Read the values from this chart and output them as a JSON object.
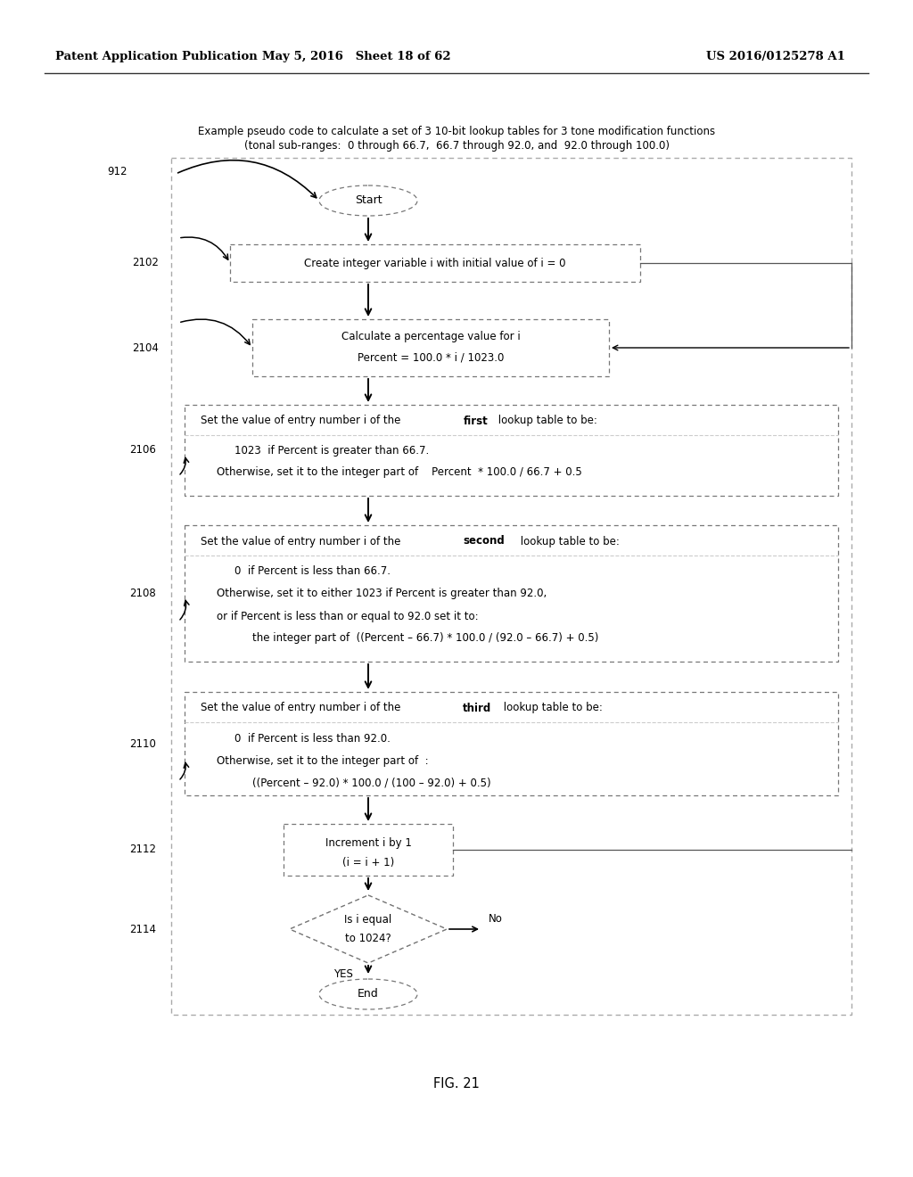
{
  "header_left": "Patent Application Publication",
  "header_mid": "May 5, 2016   Sheet 18 of 62",
  "header_right": "US 2016/0125278 A1",
  "fig_label": "FIG. 21",
  "title_line1": "Example pseudo code to calculate a set of 3 10-bit lookup tables for 3 tone modification functions",
  "title_line2": "(tonal sub-ranges:  0 through 66.7,  66.7 through 92.0, and  92.0 through 100.0)",
  "outer_label": "912",
  "node_start": "Start",
  "node_2102_label": "2102",
  "node_2102_text": "Create integer variable i with initial value of i = 0",
  "node_2104_label": "2104",
  "node_2104_text1": "Calculate a percentage value for i",
  "node_2104_text2": "Percent = 100.0 * i / 1023.0",
  "node_2106_label": "2106",
  "node_2106_line1_pre": "Set the value of entry number i of the ",
  "node_2106_line1_bold": "first",
  "node_2106_line1_post": " lookup table to be:",
  "node_2106_line2": "1023  if Percent is greater than 66.7.",
  "node_2106_line3": "Otherwise, set it to the integer part of    Percent  * 100.0 / 66.7 + 0.5",
  "node_2108_label": "2108",
  "node_2108_line1_pre": "Set the value of entry number i of the ",
  "node_2108_line1_bold": "second",
  "node_2108_line1_post": " lookup table to be:",
  "node_2108_line2": "0  if Percent is less than 66.7.",
  "node_2108_line3": "Otherwise, set it to either 1023 if Percent is greater than 92.0,",
  "node_2108_line4": "or if Percent is less than or equal to 92.0 set it to:",
  "node_2108_line5": "the integer part of  ((Percent – 66.7) * 100.0 / (92.0 – 66.7) + 0.5)",
  "node_2110_label": "2110",
  "node_2110_line1_pre": "Set the value of entry number i of the ",
  "node_2110_line1_bold": "third",
  "node_2110_line1_post": " lookup table to be:",
  "node_2110_line2": "0  if Percent is less than 92.0.",
  "node_2110_line3": "Otherwise, set it to the integer part of  :",
  "node_2110_line4": "((Percent – 92.0) * 100.0 / (100 – 92.0) + 0.5)",
  "node_2112_label": "2112",
  "node_2112_text1": "Increment i by 1",
  "node_2112_text2": "(i = i + 1)",
  "node_2114_label": "2114",
  "node_2114_text1": "Is i equal",
  "node_2114_text2": "to 1024?",
  "node_end": "End",
  "yes_label": "YES",
  "no_label": "No",
  "bg_color": "#ffffff",
  "text_color": "#000000",
  "edge_color": "#777777",
  "arrow_color": "#000000"
}
